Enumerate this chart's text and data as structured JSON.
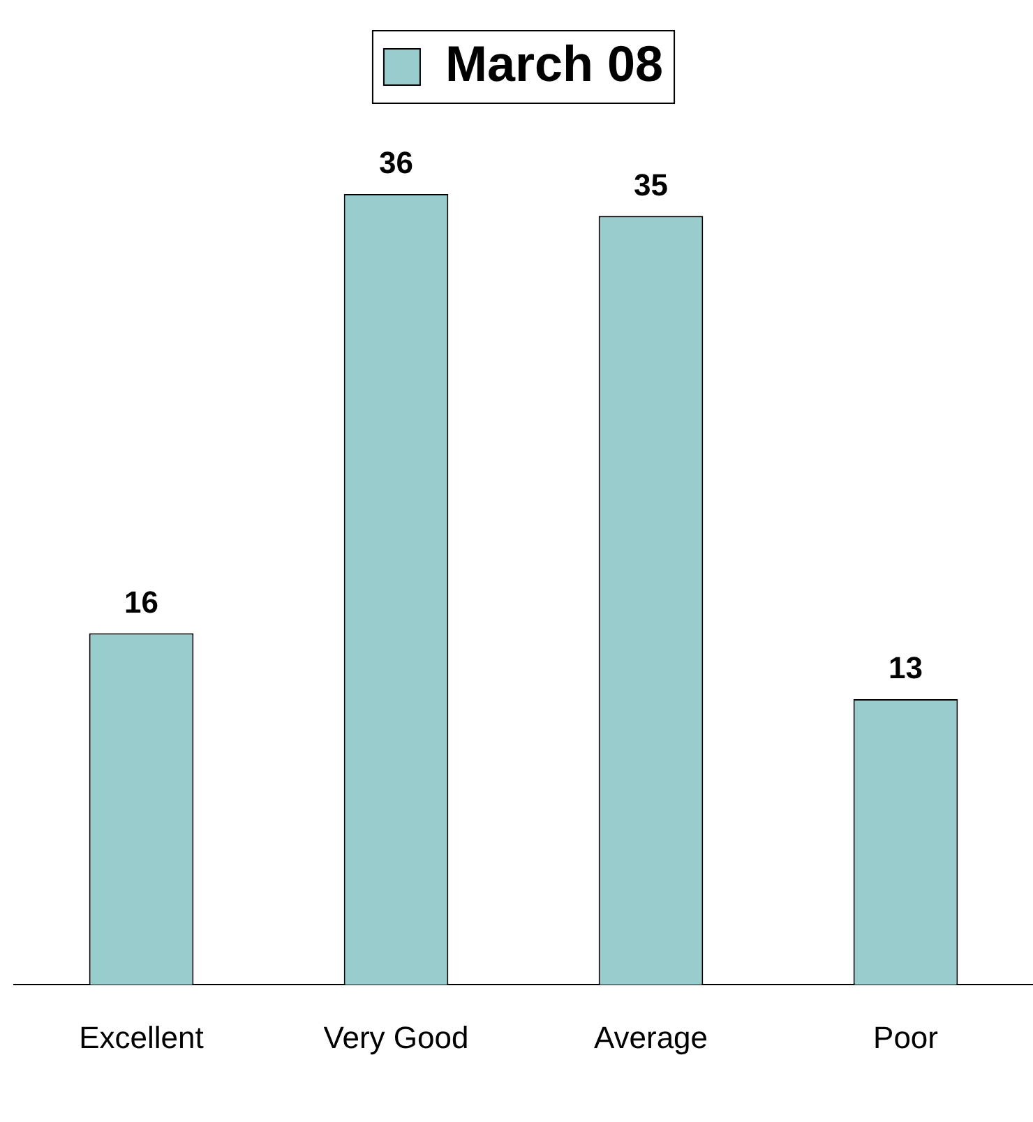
{
  "chart_data": {
    "type": "bar",
    "categories": [
      "Excellent",
      "Very Good",
      "Average",
      "Poor"
    ],
    "series": [
      {
        "name": "March 08",
        "color": "#99cccc",
        "values": [
          16,
          36,
          35,
          13
        ]
      }
    ],
    "data_labels": true,
    "legend": "top",
    "grid": false
  }
}
